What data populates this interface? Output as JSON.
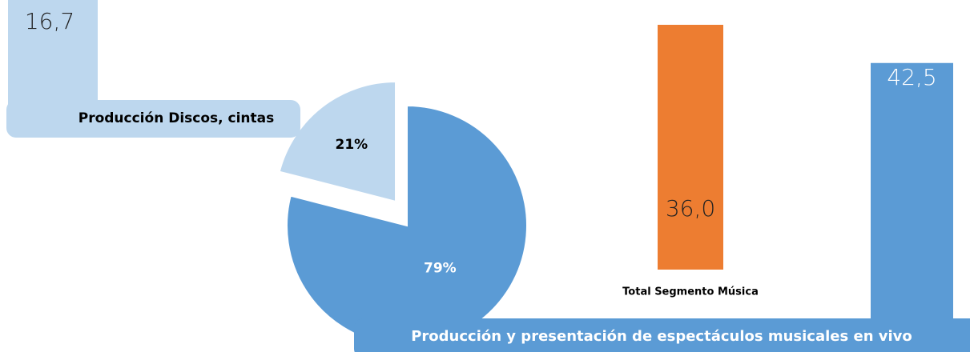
{
  "chart_data": [
    {
      "type": "pie",
      "values": [
        21,
        79
      ],
      "value_labels": [
        "21%",
        "79%"
      ],
      "colors": [
        "#bdd7ee",
        "#5b9bd5"
      ]
    },
    {
      "type": "bar",
      "categories": [
        "Producción Discos, cintas",
        "Total Segmento Música",
        "Producción y presentación de espectáculos musicales en vivo"
      ],
      "values": [
        16.7,
        36.0,
        42.5
      ],
      "value_labels": [
        "16,7",
        "36,0",
        "42,5"
      ],
      "colors": [
        "#bdd7ee",
        "#ed7d31",
        "#5b9bd5"
      ]
    }
  ]
}
